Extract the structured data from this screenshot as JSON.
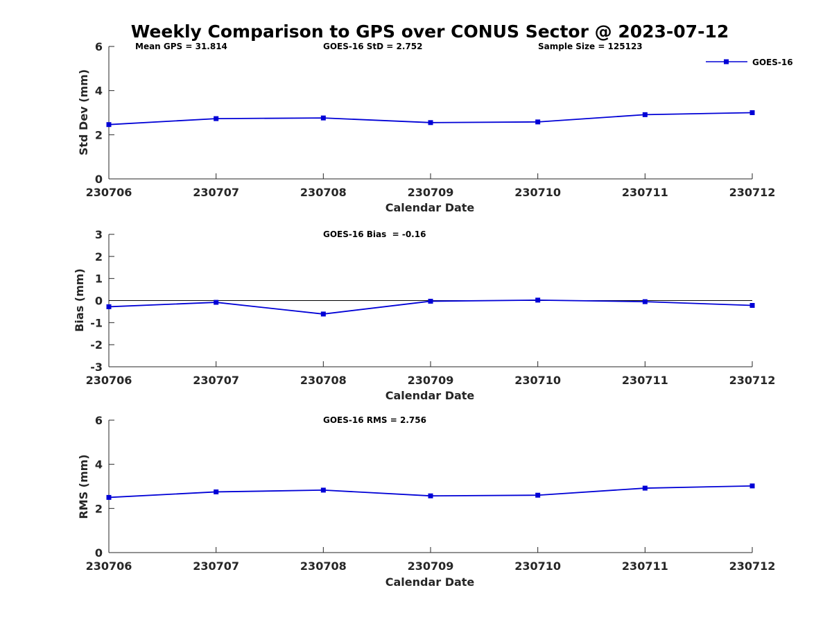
{
  "chart_data": {
    "title": "Weekly Comparison to GPS over CONUS Sector @ 2023-07-12",
    "type": "line",
    "series_color": "#0000d6",
    "legend": {
      "label": "GOES-16",
      "position": "top-right"
    },
    "categories": [
      "230706",
      "230707",
      "230708",
      "230709",
      "230710",
      "230711",
      "230712"
    ],
    "panels": [
      {
        "id": "std",
        "ylabel": "Std Dev (mm)",
        "xlabel": "Calendar Date",
        "ylim": [
          0,
          6
        ],
        "yticks": [
          0,
          2,
          4,
          6
        ],
        "values": [
          2.46,
          2.73,
          2.76,
          2.55,
          2.58,
          2.91,
          3.0
        ],
        "zero_line": false,
        "annotations": [
          "Mean GPS = 31.814",
          "GOES-16 StD = 2.752",
          "Sample Size = 125123"
        ]
      },
      {
        "id": "bias",
        "ylabel": "Bias (mm)",
        "xlabel": "Calendar Date",
        "ylim": [
          -3,
          3
        ],
        "yticks": [
          -3,
          -2,
          -1,
          0,
          1,
          2,
          3
        ],
        "values": [
          -0.28,
          -0.08,
          -0.61,
          -0.03,
          0.02,
          -0.05,
          -0.22
        ],
        "zero_line": true,
        "annotations": [
          "GOES-16 Bias  = -0.16"
        ]
      },
      {
        "id": "rms",
        "ylabel": "RMS (mm)",
        "xlabel": "Calendar Date",
        "ylim": [
          0,
          6
        ],
        "yticks": [
          0,
          2,
          4,
          6
        ],
        "values": [
          2.5,
          2.75,
          2.83,
          2.57,
          2.6,
          2.92,
          3.02
        ],
        "zero_line": false,
        "annotations": [
          "GOES-16 RMS = 2.756"
        ]
      }
    ]
  }
}
